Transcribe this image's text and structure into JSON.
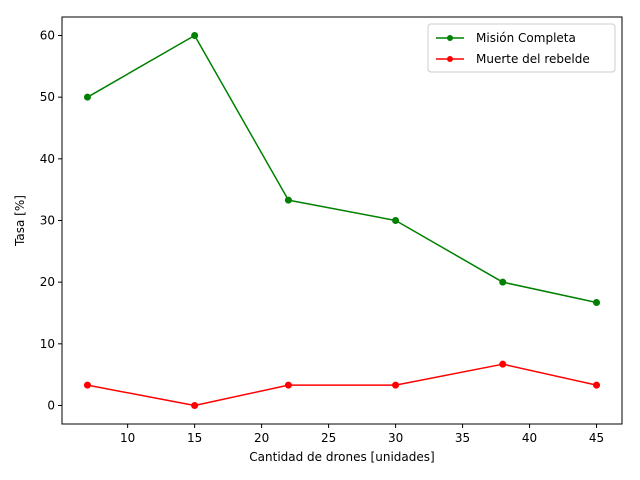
{
  "chart_data": {
    "type": "line",
    "title": "",
    "xlabel": "Cantidad de drones [unidades]",
    "ylabel": "Tasa [%]",
    "x": [
      7,
      15,
      22,
      30,
      38,
      45
    ],
    "xlim": [
      5.1,
      46.9
    ],
    "ylim": [
      -3.0,
      63.0
    ],
    "xticks": [
      10,
      15,
      20,
      25,
      30,
      35,
      40,
      45
    ],
    "yticks": [
      0,
      10,
      20,
      30,
      40,
      50,
      60
    ],
    "grid": false,
    "legend_position": "top-right",
    "series": [
      {
        "name": "Misión Completa",
        "color": "#008000",
        "values": [
          50.0,
          60.0,
          33.3,
          30.0,
          20.0,
          16.7
        ]
      },
      {
        "name": "Muerte del rebelde",
        "color": "#ff0000",
        "values": [
          3.3,
          0.0,
          3.3,
          3.3,
          6.7,
          3.3
        ]
      }
    ]
  }
}
